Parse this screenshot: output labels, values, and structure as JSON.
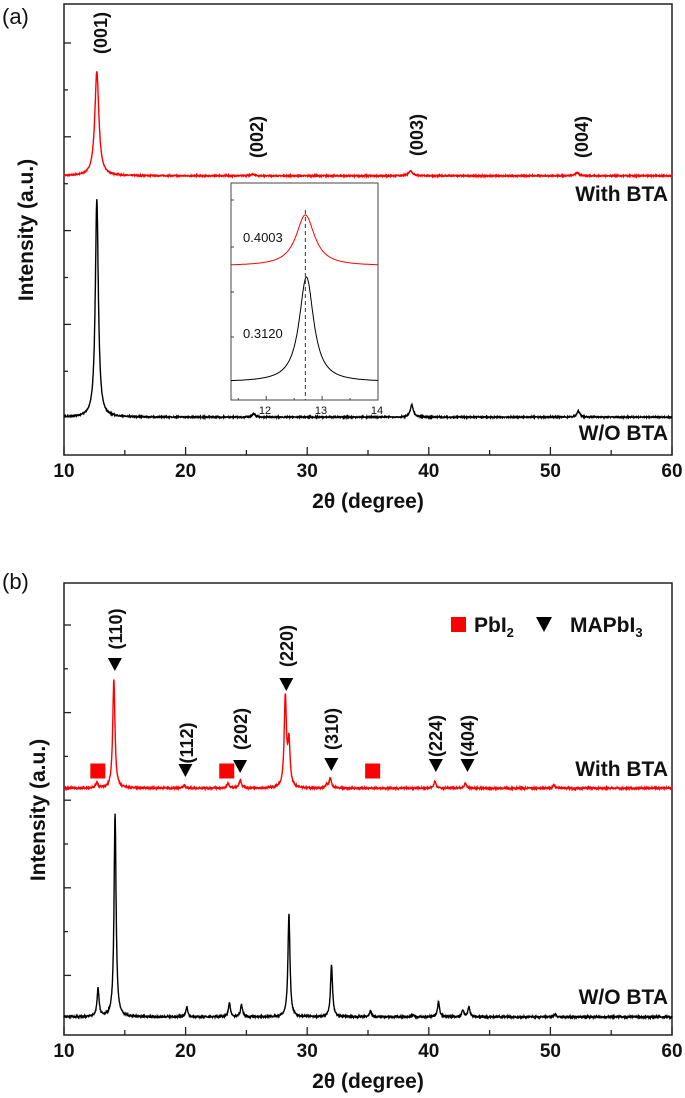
{
  "chart_data": [
    {
      "panel_label": "(a)",
      "type": "line",
      "xlabel": "2θ (degree)",
      "ylabel": "Intensity (a.u.)",
      "xlim": [
        10,
        60
      ],
      "ylim": [
        0,
        100
      ],
      "xticks": [
        "10",
        "20",
        "30",
        "40",
        "50",
        "60"
      ],
      "yticks_labeled": false,
      "series": [
        {
          "name": "With BTA",
          "color": "#ff0000",
          "baseline": 61.9,
          "fwhm": 0.4,
          "peaks": [
            {
              "x": 12.7,
              "h": 23.1
            },
            {
              "x": 25.5,
              "h": 0.4
            },
            {
              "x": 38.5,
              "h": 1.1
            },
            {
              "x": 52.2,
              "h": 0.7
            }
          ]
        },
        {
          "name": "W/O BTA",
          "color": "#000000",
          "baseline": 8.4,
          "fwhm": 0.3,
          "peaks": [
            {
              "x": 12.7,
              "h": 48.3
            },
            {
              "x": 25.6,
              "h": 0.7
            },
            {
              "x": 38.6,
              "h": 2.7
            },
            {
              "x": 52.3,
              "h": 1.3
            }
          ]
        }
      ],
      "annotations": [
        "(001)",
        "(002)",
        "(003)",
        "(004)"
      ],
      "inset": {
        "xlim": [
          11.37,
          14
        ],
        "ylim": [
          0,
          100
        ],
        "xticks": [
          "12",
          "13",
          "14"
        ],
        "reference_line_x": 12.7,
        "series": [
          {
            "color": "#ff0000",
            "baseline": 61.8,
            "peak_x": 12.7,
            "h": 23.5,
            "fwhm": 0.4003,
            "label": "0.4003"
          },
          {
            "color": "#000000",
            "baseline": 8.3,
            "peak_x": 12.72,
            "h": 48.4,
            "fwhm": 0.312,
            "label": "0.3120"
          }
        ]
      }
    },
    {
      "panel_label": "(b)",
      "type": "line",
      "xlabel": "2θ (degree)",
      "ylabel": "Intensity (a.u.)",
      "xlim": [
        10,
        60
      ],
      "ylim": [
        0,
        100
      ],
      "xticks": [
        "10",
        "20",
        "30",
        "40",
        "50",
        "60"
      ],
      "yticks_labeled": false,
      "legend": {
        "position": "top-right",
        "items": [
          {
            "marker": "square",
            "color": "#ff0000",
            "label": "PbI",
            "sub": "2"
          },
          {
            "marker": "triangle-down",
            "color": "#000000",
            "label": "MAPbI",
            "sub": "3"
          }
        ]
      },
      "series": [
        {
          "name": "With BTA",
          "color": "#ff0000",
          "baseline": 54.6,
          "fwhm": 0.22,
          "peaks": [
            {
              "x": 12.7,
              "h": 1.1
            },
            {
              "x": 14.1,
              "h": 24.1
            },
            {
              "x": 19.9,
              "h": 0.7
            },
            {
              "x": 23.5,
              "h": 1.1
            },
            {
              "x": 24.5,
              "h": 1.8
            },
            {
              "x": 28.2,
              "h": 19.9
            },
            {
              "x": 28.5,
              "h": 9.7
            },
            {
              "x": 31.6,
              "h": 0.8
            },
            {
              "x": 31.9,
              "h": 2.2
            },
            {
              "x": 40.5,
              "h": 1.5
            },
            {
              "x": 43.0,
              "h": 1.1
            },
            {
              "x": 50.3,
              "h": 0.7
            }
          ]
        },
        {
          "name": "W/O BTA",
          "color": "#000000",
          "baseline": 4.0,
          "fwhm": 0.2,
          "peaks": [
            {
              "x": 12.8,
              "h": 6.2
            },
            {
              "x": 14.2,
              "h": 45.1
            },
            {
              "x": 20.1,
              "h": 2.2
            },
            {
              "x": 23.6,
              "h": 3.1
            },
            {
              "x": 24.6,
              "h": 2.7
            },
            {
              "x": 28.5,
              "h": 22.8
            },
            {
              "x": 32.0,
              "h": 11.5
            },
            {
              "x": 35.2,
              "h": 1.3
            },
            {
              "x": 38.7,
              "h": 0.5
            },
            {
              "x": 40.8,
              "h": 3.3
            },
            {
              "x": 42.8,
              "h": 1.5
            },
            {
              "x": 43.3,
              "h": 2.2
            },
            {
              "x": 50.4,
              "h": 0.6
            }
          ]
        }
      ],
      "pbi2_markers_x": [
        12.7,
        23.3,
        35.3
      ],
      "mapbi3_annotations": [
        {
          "x": 14.1,
          "label": "(110)"
        },
        {
          "x": 19.9,
          "label": "(112)"
        },
        {
          "x": 24.4,
          "label": "(202)"
        },
        {
          "x": 28.2,
          "label": "(220)"
        },
        {
          "x": 31.9,
          "label": "(310)"
        },
        {
          "x": 40.5,
          "label": "(224)"
        },
        {
          "x": 43.1,
          "label": "(404)"
        }
      ]
    }
  ]
}
